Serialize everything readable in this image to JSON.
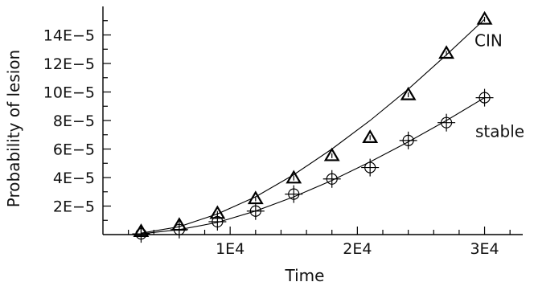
{
  "chart_data": {
    "type": "scatter",
    "xlabel": "Time",
    "ylabel": "Probability of lesion",
    "xlim": [
      0,
      33000
    ],
    "ylim": [
      0,
      0.00016
    ],
    "x_ticks": [
      {
        "value": 10000,
        "label": "1E4"
      },
      {
        "value": 20000,
        "label": "2E4"
      },
      {
        "value": 30000,
        "label": "3E4"
      }
    ],
    "y_ticks": [
      {
        "value": 2e-05,
        "label": "2E−5"
      },
      {
        "value": 4e-05,
        "label": "4E−5"
      },
      {
        "value": 6e-05,
        "label": "6E−5"
      },
      {
        "value": 8e-05,
        "label": "8E−5"
      },
      {
        "value": 0.0001,
        "label": "10E−5"
      },
      {
        "value": 0.00012,
        "label": "12E−5"
      },
      {
        "value": 0.00014,
        "label": "14E−5"
      }
    ],
    "series": [
      {
        "name": "CIN",
        "marker": "triangle",
        "points": [
          {
            "x": 3000,
            "y": 2.1e-06
          },
          {
            "x": 6000,
            "y": 6.5e-06
          },
          {
            "x": 9000,
            "y": 1.48e-05
          },
          {
            "x": 12000,
            "y": 2.51e-05
          },
          {
            "x": 15000,
            "y": 3.96e-05
          },
          {
            "x": 18000,
            "y": 5.53e-05
          },
          {
            "x": 21000,
            "y": 6.8e-05
          },
          {
            "x": 24000,
            "y": 9.8e-05
          },
          {
            "x": 27000,
            "y": 0.0001271
          },
          {
            "x": 30000,
            "y": 0.000151
          }
        ],
        "fit": [
          {
            "x": 3000,
            "y": 1e-06
          },
          {
            "x": 6000,
            "y": 5.5e-06
          },
          {
            "x": 9000,
            "y": 1.45e-05
          },
          {
            "x": 12000,
            "y": 2.65e-05
          },
          {
            "x": 15000,
            "y": 4.2e-05
          },
          {
            "x": 18000,
            "y": 6e-05
          },
          {
            "x": 21000,
            "y": 8e-05
          },
          {
            "x": 24000,
            "y": 0.000102
          },
          {
            "x": 27000,
            "y": 0.000126
          },
          {
            "x": 30000,
            "y": 0.000151
          }
        ]
      },
      {
        "name": "stable",
        "marker": "circle-plus",
        "points": [
          {
            "x": 3000,
            "y": 5e-07
          },
          {
            "x": 6000,
            "y": 3.5e-06
          },
          {
            "x": 9000,
            "y": 9e-06
          },
          {
            "x": 12000,
            "y": 1.65e-05
          },
          {
            "x": 15000,
            "y": 2.84e-05
          },
          {
            "x": 18000,
            "y": 3.9e-05
          },
          {
            "x": 21000,
            "y": 4.7e-05
          },
          {
            "x": 24000,
            "y": 6.6e-05
          },
          {
            "x": 27000,
            "y": 7.85e-05
          },
          {
            "x": 30000,
            "y": 9.6e-05
          }
        ],
        "fit": [
          {
            "x": 3000,
            "y": 5e-07
          },
          {
            "x": 6000,
            "y": 3.5e-06
          },
          {
            "x": 9000,
            "y": 8.5e-06
          },
          {
            "x": 12000,
            "y": 1.65e-05
          },
          {
            "x": 15000,
            "y": 2.65e-05
          },
          {
            "x": 18000,
            "y": 3.8e-05
          },
          {
            "x": 21000,
            "y": 5.1e-05
          },
          {
            "x": 24000,
            "y": 6.5e-05
          },
          {
            "x": 27000,
            "y": 8e-05
          },
          {
            "x": 30000,
            "y": 9.6e-05
          }
        ]
      }
    ],
    "annotations": [
      {
        "text": "CIN",
        "series": "CIN"
      },
      {
        "text": "stable",
        "series": "stable"
      }
    ],
    "grid": false,
    "legend": "none"
  }
}
